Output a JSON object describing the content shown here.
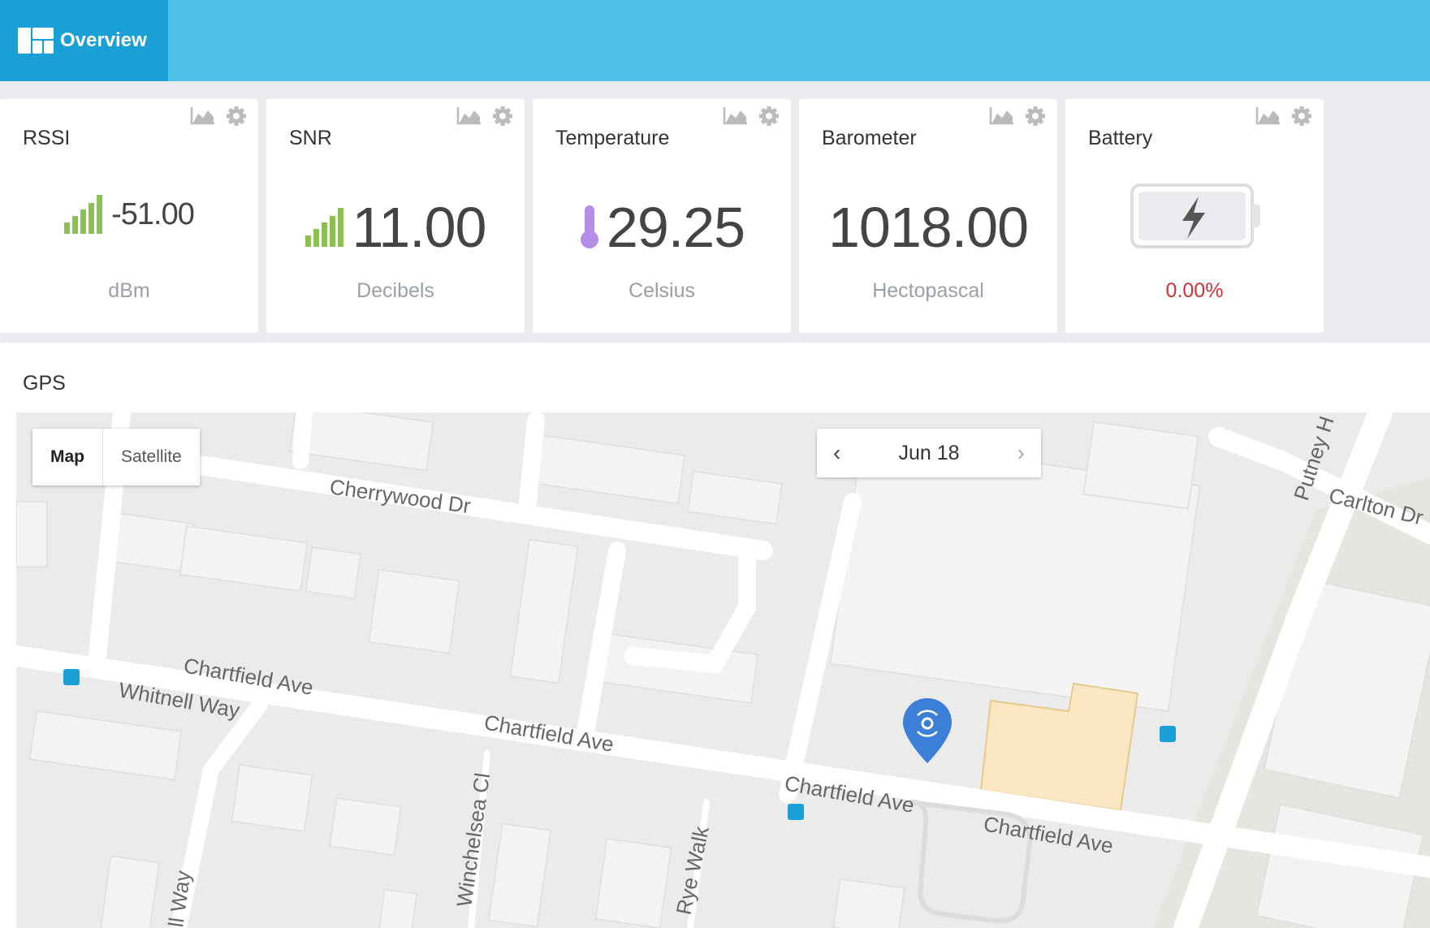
{
  "nav": {
    "overview_label": "Overview"
  },
  "cards": [
    {
      "title": "RSSI",
      "value": "-51.00",
      "unit": "dBm"
    },
    {
      "title": "SNR",
      "value": "11.00",
      "unit": "Decibels"
    },
    {
      "title": "Temperature",
      "value": "29.25",
      "unit": "Celsius"
    },
    {
      "title": "Barometer",
      "value": "1018.00",
      "unit": "Hectopascal"
    },
    {
      "title": "Battery",
      "value": "0.00%"
    }
  ],
  "gps": {
    "title": "GPS",
    "map_type": {
      "map_label": "Map",
      "satellite_label": "Satellite",
      "selected": "Map"
    },
    "date": "Jun 18",
    "streets": [
      "Cherrywood Dr",
      "Chartfield Ave",
      "Chartfield Ave",
      "Chartfield Ave",
      "Chartfield Ave",
      "Whitnell Way",
      "Winchelsea Cl",
      "Rye Walk",
      "Putney H",
      "Carlton Dr",
      "ll Way"
    ]
  },
  "colors": {
    "accent": "#4ec0e9",
    "accent_dark": "#1a9fd6",
    "signal_green": "#8cc152",
    "thermo_purple": "#b48ee8",
    "battery_red": "#d0313a",
    "marker_blue": "#3b7fd9"
  }
}
